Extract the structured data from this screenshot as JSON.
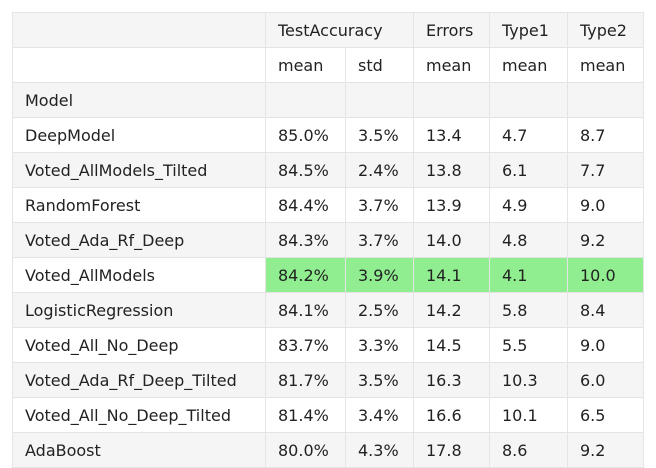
{
  "header": {
    "groups": [
      "",
      "TestAccuracy",
      "Errors",
      "Type1",
      "Type2"
    ],
    "stats": [
      "",
      "mean",
      "std",
      "mean",
      "mean",
      "mean"
    ],
    "index_name": "Model"
  },
  "highlight_color": "#90ee90",
  "rows": [
    {
      "model": "DeepModel",
      "values": [
        "85.0%",
        "3.5%",
        "13.4",
        "4.7",
        "8.7"
      ],
      "highlight": false
    },
    {
      "model": "Voted_AllModels_Tilted",
      "values": [
        "84.5%",
        "2.4%",
        "13.8",
        "6.1",
        "7.7"
      ],
      "highlight": false
    },
    {
      "model": "RandomForest",
      "values": [
        "84.4%",
        "3.7%",
        "13.9",
        "4.9",
        "9.0"
      ],
      "highlight": false
    },
    {
      "model": "Voted_Ada_Rf_Deep",
      "values": [
        "84.3%",
        "3.7%",
        "14.0",
        "4.8",
        "9.2"
      ],
      "highlight": false
    },
    {
      "model": "Voted_AllModels",
      "values": [
        "84.2%",
        "3.9%",
        "14.1",
        "4.1",
        "10.0"
      ],
      "highlight": true
    },
    {
      "model": "LogisticRegression",
      "values": [
        "84.1%",
        "2.5%",
        "14.2",
        "5.8",
        "8.4"
      ],
      "highlight": false
    },
    {
      "model": "Voted_All_No_Deep",
      "values": [
        "83.7%",
        "3.3%",
        "14.5",
        "5.5",
        "9.0"
      ],
      "highlight": false
    },
    {
      "model": "Voted_Ada_Rf_Deep_Tilted",
      "values": [
        "81.7%",
        "3.5%",
        "16.3",
        "10.3",
        "6.0"
      ],
      "highlight": false
    },
    {
      "model": "Voted_All_No_Deep_Tilted",
      "values": [
        "81.4%",
        "3.4%",
        "16.6",
        "10.1",
        "6.5"
      ],
      "highlight": false
    },
    {
      "model": "AdaBoost",
      "values": [
        "80.0%",
        "4.3%",
        "17.8",
        "8.6",
        "9.2"
      ],
      "highlight": false
    }
  ]
}
